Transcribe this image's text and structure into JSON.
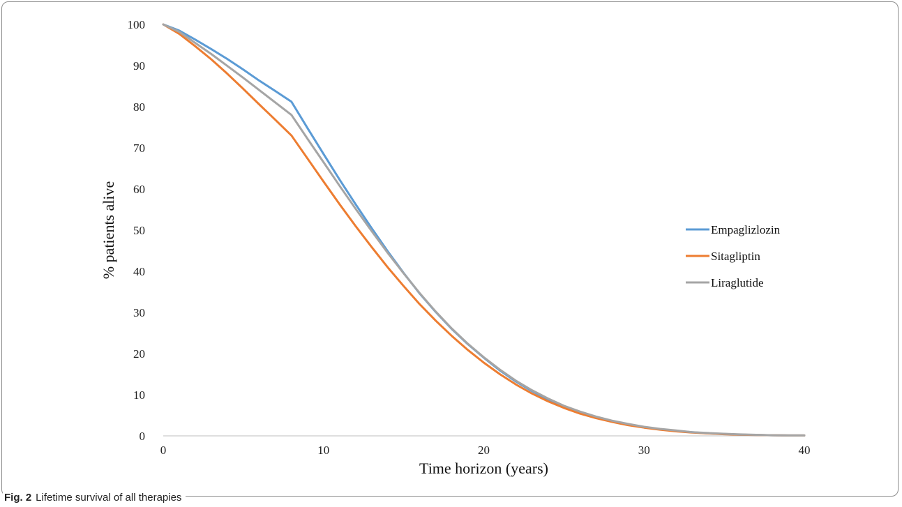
{
  "figure": {
    "label": "Fig. 2",
    "caption": "Lifetime survival of all therapies"
  },
  "chart_data": {
    "type": "line",
    "xlabel": "Time horizon (years)",
    "ylabel": "% patients alive",
    "xlim": [
      0,
      40
    ],
    "ylim": [
      0,
      100
    ],
    "xticks": [
      0,
      10,
      20,
      30,
      40
    ],
    "yticks": [
      0,
      10,
      20,
      30,
      40,
      50,
      60,
      70,
      80,
      90,
      100
    ],
    "grid": false,
    "legend_position": "right",
    "series": [
      {
        "name": "Empaglizlozin",
        "color": "#5b9bd5",
        "x": [
          0,
          1,
          2,
          3,
          4,
          5,
          6,
          7,
          8,
          9,
          10,
          11,
          12,
          13,
          14,
          15,
          16,
          17,
          18,
          19,
          20,
          21,
          22,
          23,
          24,
          25,
          26,
          27,
          28,
          29,
          30,
          31,
          32,
          33,
          34,
          35,
          36,
          37,
          38,
          39,
          40
        ],
        "y": [
          100,
          98.5,
          96.3,
          94,
          91.6,
          89,
          86.3,
          83.8,
          81.2,
          74.8,
          68.5,
          62.3,
          56.3,
          50.5,
          44.9,
          39.6,
          34.6,
          30.1,
          26,
          22.3,
          19,
          15.9,
          13.2,
          10.9,
          8.9,
          7.2,
          5.8,
          4.6,
          3.6,
          2.8,
          2.1,
          1.6,
          1.2,
          0.9,
          0.6,
          0.45,
          0.3,
          0.2,
          0.15,
          0.1,
          0.1
        ]
      },
      {
        "name": "Sitagliptin",
        "color": "#ed7d31",
        "x": [
          0,
          1,
          2,
          3,
          4,
          5,
          6,
          7,
          8,
          9,
          10,
          11,
          12,
          13,
          14,
          15,
          16,
          17,
          18,
          19,
          20,
          21,
          22,
          23,
          24,
          25,
          26,
          27,
          28,
          29,
          30,
          31,
          32,
          33,
          34,
          35,
          36,
          37,
          38,
          39,
          40
        ],
        "y": [
          100,
          97.7,
          94.7,
          91.5,
          88,
          84.3,
          80.5,
          76.8,
          73,
          67.4,
          61.8,
          56.3,
          51,
          45.9,
          41,
          36.4,
          32,
          28,
          24.3,
          20.9,
          17.8,
          15,
          12.5,
          10.3,
          8.4,
          6.8,
          5.4,
          4.3,
          3.4,
          2.6,
          2,
          1.5,
          1.1,
          0.8,
          0.6,
          0.4,
          0.3,
          0.2,
          0.15,
          0.1,
          0.1
        ]
      },
      {
        "name": "Liraglutide",
        "color": "#a5a5a5",
        "x": [
          0,
          1,
          2,
          3,
          4,
          5,
          6,
          7,
          8,
          9,
          10,
          11,
          12,
          13,
          14,
          15,
          16,
          17,
          18,
          19,
          20,
          21,
          22,
          23,
          24,
          25,
          26,
          27,
          28,
          29,
          30,
          31,
          32,
          33,
          34,
          35,
          36,
          37,
          38,
          39,
          40
        ],
        "y": [
          100,
          98.2,
          95.5,
          92.8,
          89.9,
          87,
          84,
          81,
          78,
          72.2,
          66.5,
          60.8,
          55.2,
          49.8,
          44.5,
          39.5,
          34.7,
          30.2,
          26.1,
          22.4,
          19.1,
          16.1,
          13.4,
          11.1,
          9.1,
          7.3,
          5.9,
          4.7,
          3.7,
          2.9,
          2.2,
          1.7,
          1.3,
          0.9,
          0.7,
          0.5,
          0.35,
          0.25,
          0.15,
          0.1,
          0.1
        ]
      }
    ]
  }
}
